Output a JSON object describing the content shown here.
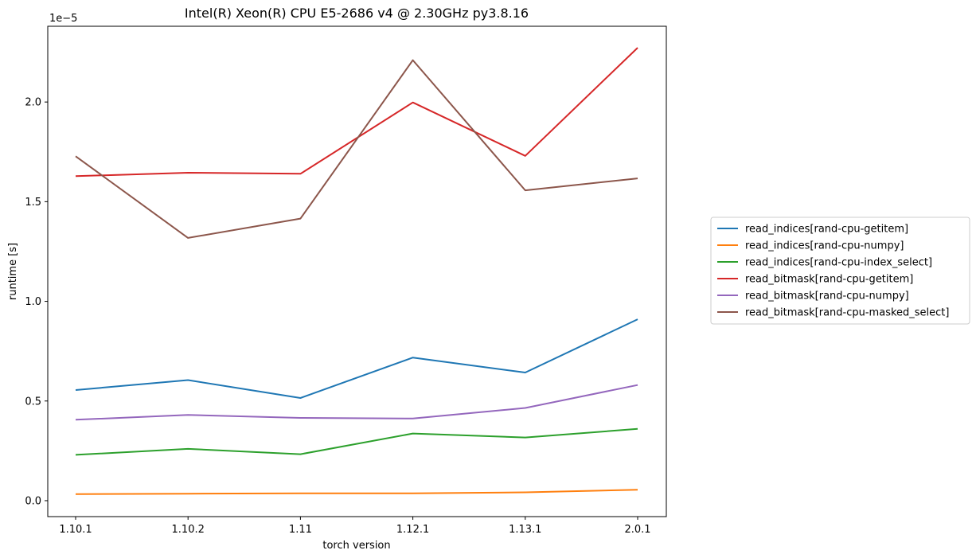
{
  "chart_data": {
    "type": "line",
    "title": "Intel(R) Xeon(R) CPU E5-2686 v4 @ 2.30GHz py3.8.16",
    "xlabel": "torch version",
    "ylabel": "runtime [s]",
    "y_multiplier": "1e−5",
    "categories": [
      "1.10.1",
      "1.10.2",
      "1.11",
      "1.12.1",
      "1.13.1",
      "2.0.1"
    ],
    "yticks": [
      0.0,
      0.5,
      1.0,
      1.5,
      2.0
    ],
    "ylim": [
      -0.08,
      2.38
    ],
    "grid": false,
    "legend_position": "right, outside plot",
    "series": [
      {
        "name": "read_indices[rand-cpu-getitem]",
        "color": "#1f77b4",
        "values": [
          0.555,
          0.605,
          0.515,
          0.718,
          0.643,
          0.91
        ]
      },
      {
        "name": "read_indices[rand-cpu-numpy]",
        "color": "#ff7f0e",
        "values": [
          0.033,
          0.035,
          0.037,
          0.037,
          0.042,
          0.055
        ]
      },
      {
        "name": "read_indices[rand-cpu-index_select]",
        "color": "#2ca02c",
        "values": [
          0.23,
          0.26,
          0.233,
          0.337,
          0.317,
          0.36
        ]
      },
      {
        "name": "read_bitmask[rand-cpu-getitem]",
        "color": "#d62728",
        "values": [
          1.628,
          1.645,
          1.64,
          1.998,
          1.73,
          2.272
        ]
      },
      {
        "name": "read_bitmask[rand-cpu-numpy]",
        "color": "#9467bd",
        "values": [
          0.406,
          0.43,
          0.415,
          0.412,
          0.465,
          0.58
        ]
      },
      {
        "name": "read_bitmask[rand-cpu-masked_select]",
        "color": "#8c564b",
        "values": [
          1.728,
          1.318,
          1.415,
          2.21,
          1.557,
          1.617
        ]
      }
    ]
  }
}
